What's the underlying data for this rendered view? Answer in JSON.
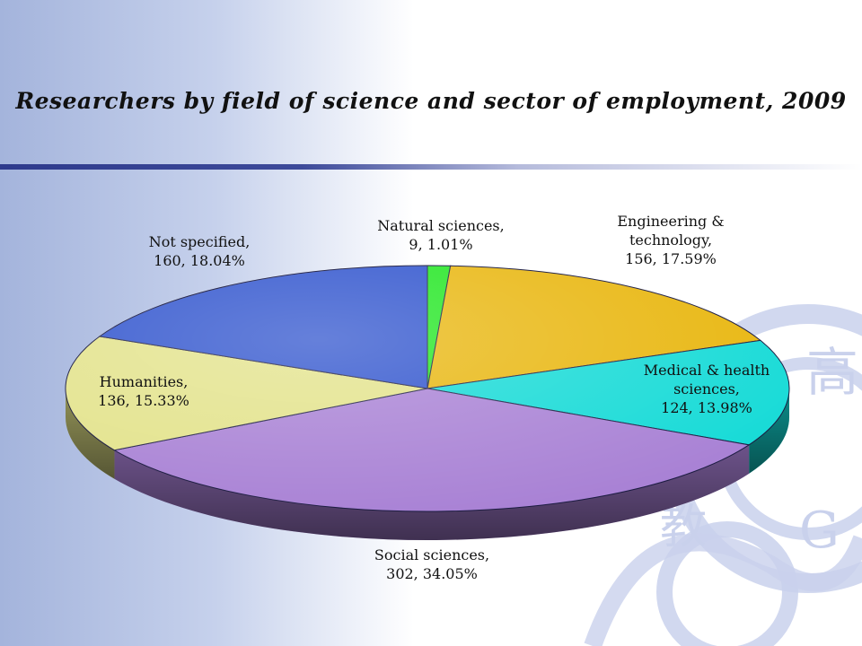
{
  "slide": {
    "title": "Researchers by field of science and sector of employment, 2009"
  },
  "watermark": {
    "glyph_1": "高",
    "glyph_2": "教",
    "glyph_3": "G"
  },
  "colors": {
    "background_left": "#a4b4dc",
    "rule": "#2e3a8c",
    "watermark": "#c9d1ec"
  },
  "chart_data": {
    "type": "pie",
    "title": "Researchers by field of science and sector of employment, 2009",
    "style": "3d",
    "legend": "none",
    "slices": [
      {
        "label": "Natural sciences",
        "value": 9,
        "percent": "1.01%",
        "color": "#1ee61e",
        "label_lines": [
          "Natural sciences,",
          "9, 1.01%"
        ]
      },
      {
        "label": "Engineering & technology",
        "value": 156,
        "percent": "17.59%",
        "color": "#e8b50a",
        "label_lines": [
          "Engineering &",
          "technology,",
          "156, 17.59%"
        ]
      },
      {
        "label": "Medical & health sciences",
        "value": 124,
        "percent": "13.98%",
        "color": "#12dad6",
        "label_lines": [
          "Medical & health",
          "sciences,",
          "124, 13.98%"
        ]
      },
      {
        "label": "Social sciences",
        "value": 302,
        "percent": "34.05%",
        "color": "#a77fd4",
        "label_lines": [
          "Social sciences,",
          "302, 34.05%"
        ]
      },
      {
        "label": "Humanities",
        "value": 136,
        "percent": "15.33%",
        "color": "#e2e288",
        "label_lines": [
          "Humanities,",
          "136, 15.33%"
        ]
      },
      {
        "label": "Not specified",
        "value": 160,
        "percent": "18.04%",
        "color": "#2a4fcc",
        "label_lines": [
          "Not specified,",
          "160, 18.04%"
        ]
      }
    ]
  }
}
